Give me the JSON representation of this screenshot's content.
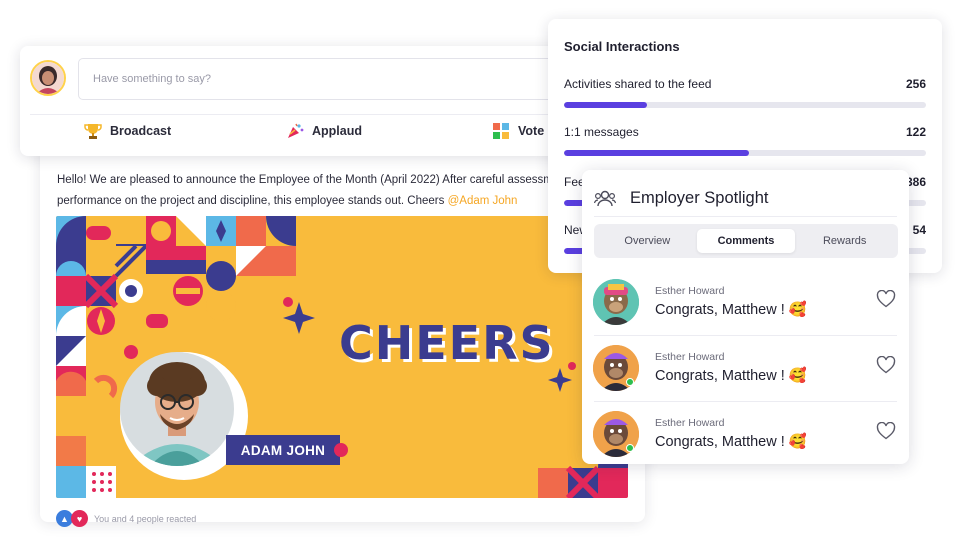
{
  "composer": {
    "placeholder": "Have something to say?",
    "actions": [
      {
        "label": "Broadcast",
        "icon": "trophy-icon"
      },
      {
        "label": "Applaud",
        "icon": "party-popper-icon"
      },
      {
        "label": "Vote",
        "icon": "vote-icon"
      }
    ]
  },
  "post": {
    "line1": "Hello! We are pleased to announce the Employee of the Month (April 2022) After careful assessment of",
    "line2_prefix": "performance on the project and discipline, this employee stands out. Cheers ",
    "mention": "@Adam John",
    "banner_heading": "CHEERS",
    "employee_name": "ADAM JOHN",
    "reactions_text": "You and 4 people reacted"
  },
  "social": {
    "title": "Social Interactions",
    "metrics": [
      {
        "label": "Activities shared to the feed",
        "value": "256",
        "fill": 0.23
      },
      {
        "label": "1:1 messages",
        "value": "122",
        "fill": 0.51
      },
      {
        "label": "Feedback",
        "value": "386",
        "fill": 0.65
      },
      {
        "label": "New",
        "value": "54",
        "fill": 0.15
      }
    ]
  },
  "spotlight": {
    "title": "Employer Spotlight",
    "tabs": [
      "Overview",
      "Comments",
      "Rewards"
    ],
    "active_tab": "Comments",
    "comments": [
      {
        "author": "Esther Howard",
        "text": "Congrats, Matthew ! 🥰"
      },
      {
        "author": "Esther Howard",
        "text": "Congrats, Matthew ! 🥰"
      },
      {
        "author": "Esther Howard",
        "text": "Congrats, Matthew ! 🥰"
      }
    ]
  },
  "colors": {
    "accent": "#5a3fe0",
    "banner": "#f9bb3c",
    "navy": "#3b3c8f",
    "mention": "#f5a623"
  }
}
